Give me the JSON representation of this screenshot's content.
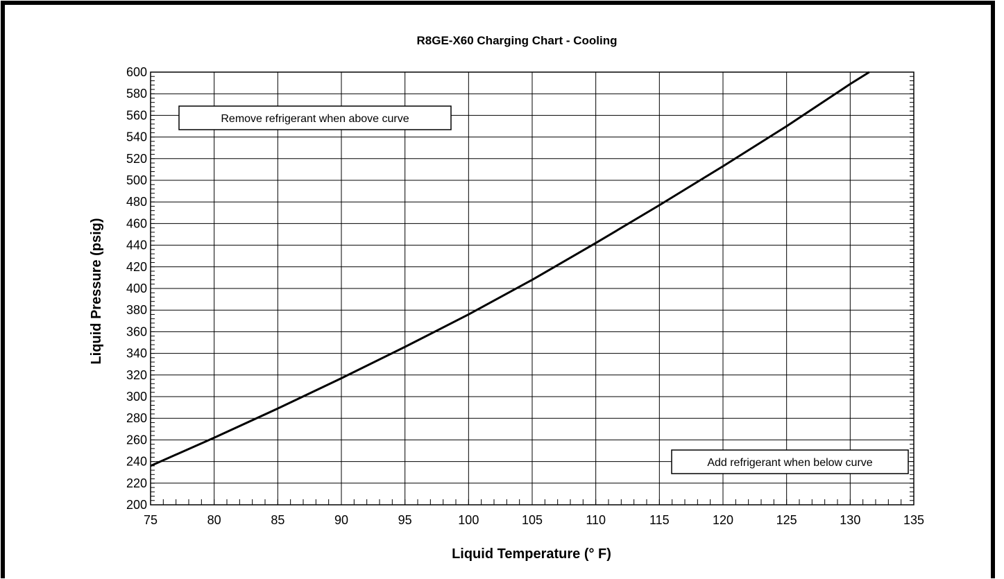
{
  "chart_data": {
    "type": "line",
    "title": "R8GE-X60 Charging Chart - Cooling",
    "xlabel": "Liquid Temperature (° F)",
    "ylabel": "Liquid Pressure (psig)",
    "xlim": [
      75,
      135
    ],
    "ylim": [
      200,
      600
    ],
    "x_ticks": [
      75,
      80,
      85,
      90,
      95,
      100,
      105,
      110,
      115,
      120,
      125,
      130,
      135
    ],
    "y_ticks": [
      200,
      220,
      240,
      260,
      280,
      300,
      320,
      340,
      360,
      380,
      400,
      420,
      440,
      460,
      480,
      500,
      520,
      540,
      560,
      580,
      600
    ],
    "grid": true,
    "series": [
      {
        "x": [
          75,
          80,
          85,
          90,
          95,
          100,
          105,
          110,
          115,
          120,
          125,
          130,
          131.5
        ],
        "y": [
          236,
          262,
          289,
          317,
          346,
          376,
          408,
          442,
          477,
          513,
          550,
          589,
          600
        ]
      }
    ],
    "annotations": [
      {
        "text": "Remove refrigerant when above curve",
        "position": "top-left"
      },
      {
        "text": "Add refrigerant when below curve",
        "position": "bottom-right"
      }
    ]
  }
}
